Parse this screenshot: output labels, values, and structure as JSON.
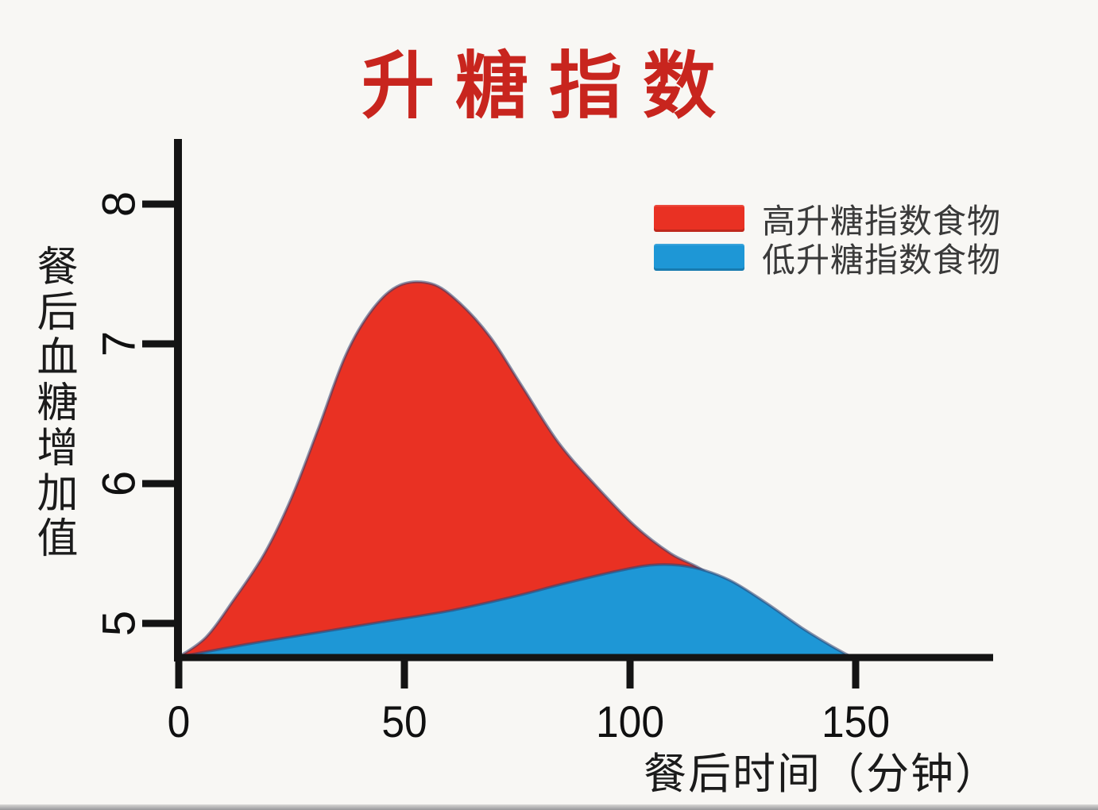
{
  "title": {
    "text": "升糖指数",
    "color": "#c8251e"
  },
  "y_axis": {
    "title": "餐后血糖增加值",
    "tick_labels": [
      "8",
      "7",
      "6",
      "5"
    ]
  },
  "x_axis": {
    "title": "餐后时间（分钟）",
    "tick_labels": [
      "0",
      "50",
      "100",
      "150"
    ]
  },
  "legend": {
    "items": [
      {
        "label": "高升糖指数食物",
        "color": "#e93123"
      },
      {
        "label": "低升糖指数食物",
        "color": "#1e97d6"
      }
    ]
  },
  "colors": {
    "high_gi_fill": "#e93123",
    "low_gi_fill": "#1e97d6",
    "curve_outline": "#2e3f6e",
    "axis": "#141414",
    "title_red": "#c8251e",
    "background": "#f8f7f4"
  },
  "chart_data": {
    "type": "area",
    "title": "升糖指数",
    "xlabel": "餐后时间（分钟）",
    "ylabel": "餐后血糖增加值",
    "x_ticks": [
      0,
      50,
      100,
      150
    ],
    "y_ticks": [
      5,
      6,
      7,
      8
    ],
    "xlim": [
      0,
      180
    ],
    "ylim": [
      4.76,
      8.47
    ],
    "baseline_value": 4.76,
    "grid": false,
    "legend_position": "upper right",
    "series": [
      {
        "name": "高升糖指数食物",
        "color": "#e93123",
        "peak": {
          "x": 52,
          "y": 7.43
        },
        "points": [
          [
            0,
            4.76
          ],
          [
            6,
            4.9
          ],
          [
            12,
            5.16
          ],
          [
            19,
            5.5
          ],
          [
            25,
            5.9
          ],
          [
            31,
            6.4
          ],
          [
            37,
            6.92
          ],
          [
            43,
            7.25
          ],
          [
            49,
            7.42
          ],
          [
            56,
            7.43
          ],
          [
            62,
            7.3
          ],
          [
            69,
            7.05
          ],
          [
            76,
            6.7
          ],
          [
            84,
            6.3
          ],
          [
            92,
            6.0
          ],
          [
            101,
            5.7
          ],
          [
            109,
            5.5
          ],
          [
            117,
            5.36
          ],
          [
            125,
            5.1
          ],
          [
            132,
            4.92
          ],
          [
            138,
            4.76
          ]
        ]
      },
      {
        "name": "低升糖指数食物",
        "color": "#1e97d6",
        "peak": {
          "x": 106,
          "y": 5.42
        },
        "points": [
          [
            0,
            4.76
          ],
          [
            15,
            4.85
          ],
          [
            30,
            4.93
          ],
          [
            45,
            5.01
          ],
          [
            60,
            5.09
          ],
          [
            74,
            5.19
          ],
          [
            86,
            5.29
          ],
          [
            98,
            5.38
          ],
          [
            106,
            5.42
          ],
          [
            114,
            5.4
          ],
          [
            122,
            5.31
          ],
          [
            130,
            5.15
          ],
          [
            138,
            4.97
          ],
          [
            144,
            4.85
          ],
          [
            149,
            4.76
          ]
        ]
      }
    ]
  }
}
